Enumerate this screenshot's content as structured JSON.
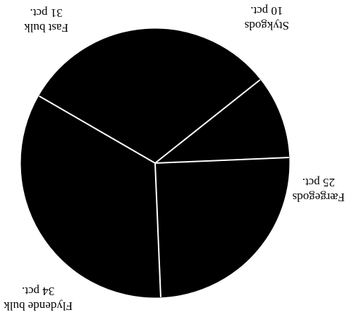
{
  "chart_data": {
    "type": "pie",
    "slices": [
      {
        "label": "Fast bulk",
        "value_label": "31 pct.",
        "value": 31
      },
      {
        "label": "Stykgods",
        "value_label": "10 pct.",
        "value": 10
      },
      {
        "label": "Færgegods",
        "value_label": "25 pct.",
        "value": 25
      },
      {
        "label": "Flydende bulk",
        "value_label": "34 pct.",
        "value": 34
      }
    ],
    "orientation": "rotated 180 degrees",
    "colors": {
      "slice": "#000000",
      "separator": "#ffffff",
      "background": "#ffffff"
    }
  }
}
